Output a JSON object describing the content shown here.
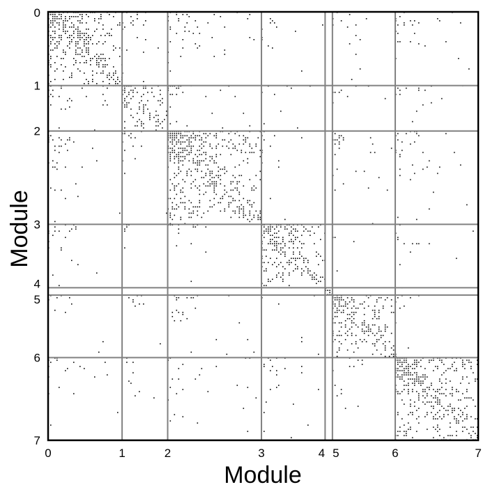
{
  "chart_data": {
    "type": "heatmap",
    "title": "",
    "xlabel": "Module",
    "ylabel": "Module",
    "xlim": [
      0,
      7
    ],
    "ylim": [
      0,
      7
    ],
    "y_axis_inverted": true,
    "grid": true,
    "legend": "none",
    "module_boundaries": [
      0,
      1,
      2,
      3,
      4,
      5,
      6,
      7
    ],
    "x_tick_labels": [
      "0",
      "1",
      "2",
      "3",
      "4",
      "5",
      "6",
      "7"
    ],
    "y_tick_labels": [
      "0",
      "1",
      "2",
      "3",
      "4",
      "5",
      "6",
      "7"
    ],
    "module_size_fractions": [
      0.172,
      0.106,
      0.218,
      0.148,
      0.017,
      0.146,
      0.193
    ],
    "block_density": [
      [
        0.55,
        0.12,
        0.14,
        0.1,
        0.0,
        0.06,
        0.1
      ],
      [
        0.12,
        0.45,
        0.1,
        0.08,
        0.0,
        0.04,
        0.09
      ],
      [
        0.14,
        0.1,
        0.5,
        0.04,
        0.0,
        0.09,
        0.1
      ],
      [
        0.1,
        0.08,
        0.04,
        0.45,
        0.0,
        0.02,
        0.07
      ],
      [
        0.0,
        0.0,
        0.0,
        0.0,
        1.0,
        0.0,
        0.0
      ],
      [
        0.06,
        0.04,
        0.09,
        0.02,
        0.0,
        0.45,
        0.05
      ],
      [
        0.1,
        0.09,
        0.1,
        0.07,
        0.0,
        0.05,
        0.5
      ]
    ],
    "colors": {
      "dot": "#000000",
      "grid": "#808080",
      "frame": "#000000",
      "background": "#ffffff"
    }
  }
}
